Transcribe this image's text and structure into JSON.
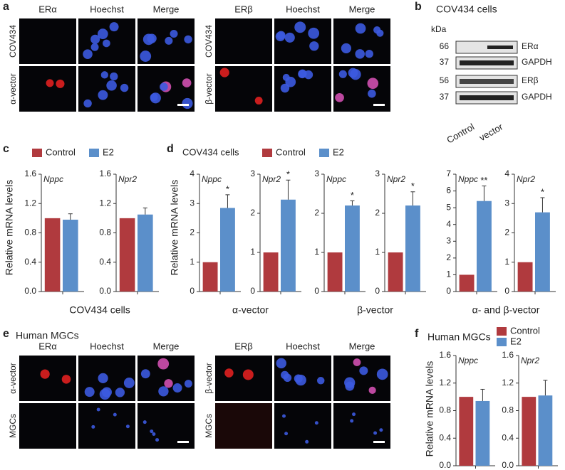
{
  "panel_a": {
    "letter": "a",
    "left": {
      "columns": [
        "ERα",
        "Hoechst",
        "Merge"
      ],
      "rows": [
        "COV434",
        "α-vector"
      ]
    },
    "right": {
      "columns": [
        "ERβ",
        "Hoechst",
        "Merge"
      ],
      "rows": [
        "COV434",
        "β-vector"
      ]
    }
  },
  "panel_b": {
    "letter": "b",
    "title": "COV434 cells",
    "unit": "kDa",
    "bands": [
      {
        "size": 66,
        "label": "ERα"
      },
      {
        "size": 37,
        "label": "GAPDH"
      },
      {
        "size": 56,
        "label": "ERβ"
      },
      {
        "size": 37,
        "label": "GAPDH"
      }
    ],
    "lanes": [
      "Control",
      "vector"
    ]
  },
  "panel_c": {
    "letter": "c",
    "ylabel": "Relative mRNA levels",
    "xlabel": "COV434 cells",
    "legend": [
      {
        "name": "Control",
        "color": "#b03a3e"
      },
      {
        "name": "E2",
        "color": "#5b8fca"
      }
    ],
    "charts": [
      {
        "type": "bar",
        "gene": "Nppc",
        "ylim": [
          0,
          1.6
        ],
        "yticks": [
          {
            "value": 0,
            "label": "0.0"
          },
          {
            "value": 0.4,
            "label": "0.4"
          },
          {
            "value": 0.8,
            "label": "0.8"
          },
          {
            "value": 1.2,
            "label": "1.2"
          },
          {
            "value": 1.6,
            "label": "1.6"
          }
        ],
        "values": [
          1.0,
          0.98
        ],
        "errors": [
          null,
          0.08
        ]
      },
      {
        "type": "bar",
        "gene": "Npr2",
        "ylim": [
          0,
          1.6
        ],
        "yticks": [
          {
            "value": 0,
            "label": "0.0"
          },
          {
            "value": 0.4,
            "label": "0.4"
          },
          {
            "value": 0.8,
            "label": "0.8"
          },
          {
            "value": 1.2,
            "label": "1.2"
          },
          {
            "value": 1.6,
            "label": "1.6"
          }
        ],
        "values": [
          1.0,
          1.05
        ],
        "errors": [
          null,
          0.09
        ]
      }
    ]
  },
  "panel_d": {
    "letter": "d",
    "title": "COV434 cells",
    "ylabel": "Relative mRNA levels",
    "legend": [
      {
        "name": "Control",
        "color": "#b03a3e"
      },
      {
        "name": "E2",
        "color": "#5b8fca"
      }
    ],
    "groups": [
      {
        "xlabel": "α-vector",
        "charts": [
          {
            "type": "bar",
            "gene": "Nppc",
            "ylim": [
              0,
              4
            ],
            "yticks": [
              0,
              1,
              2,
              3,
              4
            ],
            "values": [
              1,
              2.85
            ],
            "errors": [
              null,
              0.45
            ],
            "significance": "*"
          },
          {
            "type": "bar",
            "gene": "Npr2",
            "ylim": [
              0,
              3
            ],
            "yticks": [
              0,
              1,
              2,
              3
            ],
            "values": [
              1,
              2.35
            ],
            "errors": [
              null,
              0.5
            ],
            "significance": "*"
          }
        ]
      },
      {
        "xlabel": "β-vector",
        "charts": [
          {
            "type": "bar",
            "gene": "Nppc",
            "ylim": [
              0,
              3
            ],
            "yticks": [
              0,
              1,
              2,
              3
            ],
            "values": [
              1,
              2.2
            ],
            "errors": [
              null,
              0.12
            ],
            "significance": "*"
          },
          {
            "type": "bar",
            "gene": "Npr2",
            "ylim": [
              0,
              3
            ],
            "yticks": [
              0,
              1,
              2,
              3
            ],
            "values": [
              1,
              2.2
            ],
            "errors": [
              null,
              0.35
            ],
            "significance": "*"
          }
        ]
      },
      {
        "xlabel": "α- and β-vector",
        "charts": [
          {
            "type": "bar",
            "gene": "Nppc",
            "ylim": [
              0,
              7
            ],
            "yticks": [
              0,
              1,
              2,
              3,
              4,
              5,
              6,
              7
            ],
            "values": [
              1,
              5.4
            ],
            "errors": [
              null,
              0.9
            ],
            "significance": "**"
          },
          {
            "type": "bar",
            "gene": "Npr2",
            "ylim": [
              0,
              4
            ],
            "yticks": [
              0,
              1,
              2,
              3,
              4
            ],
            "values": [
              1,
              2.7
            ],
            "errors": [
              null,
              0.5
            ],
            "significance": "*"
          }
        ]
      }
    ]
  },
  "panel_e": {
    "letter": "e",
    "title": "Human MGCs",
    "left": {
      "columns": [
        "ERα",
        "Hoechst",
        "Merge"
      ],
      "rows": [
        "α-vector",
        "MGCs"
      ]
    },
    "right": {
      "columns": [
        "ERβ",
        "Hoechst",
        "Merge"
      ],
      "rows": [
        "β-vector",
        "MGCs"
      ]
    }
  },
  "panel_f": {
    "letter": "f",
    "title": "Human MGCs",
    "ylabel": "Relative mRNA levels",
    "legend": [
      {
        "name": "Control",
        "color": "#b03a3e"
      },
      {
        "name": "E2",
        "color": "#5b8fca"
      }
    ],
    "charts": [
      {
        "type": "bar",
        "gene": "Nppc",
        "ylim": [
          0,
          1.6
        ],
        "yticks": [
          {
            "value": 0,
            "label": "0.0"
          },
          {
            "value": 0.4,
            "label": "0.4"
          },
          {
            "value": 0.8,
            "label": "0.8"
          },
          {
            "value": 1.2,
            "label": "1.2"
          },
          {
            "value": 1.6,
            "label": "1.6"
          }
        ],
        "values": [
          1.0,
          0.94
        ],
        "errors": [
          null,
          0.17
        ]
      },
      {
        "type": "bar",
        "gene": "Npr2",
        "ylim": [
          0,
          1.6
        ],
        "yticks": [
          {
            "value": 0,
            "label": "0.0"
          },
          {
            "value": 0.4,
            "label": "0.4"
          },
          {
            "value": 0.8,
            "label": "0.8"
          },
          {
            "value": 1.2,
            "label": "1.2"
          },
          {
            "value": 1.6,
            "label": "1.6"
          }
        ],
        "values": [
          1.0,
          1.02
        ],
        "errors": [
          null,
          0.22
        ]
      }
    ]
  }
}
